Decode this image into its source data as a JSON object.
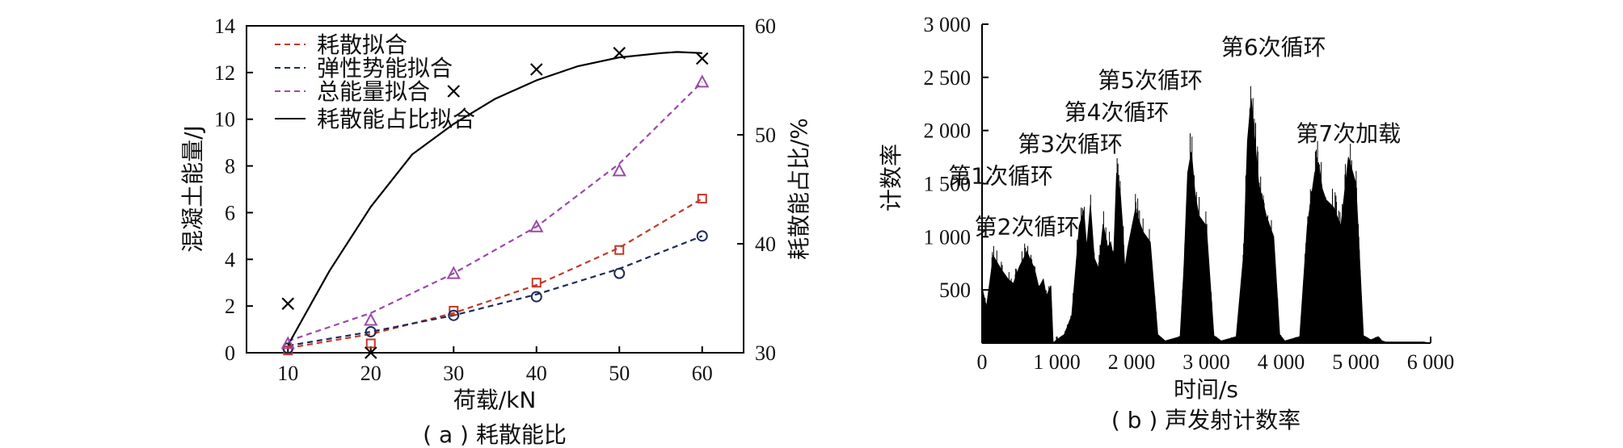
{
  "chart_data": [
    {
      "type": "scatter",
      "panel_caption": "( a ) 耗散能比",
      "xlabel": "荷载/kN",
      "ylabel": "混凝土能量/J",
      "ylabel_right": "耗散能占比/%",
      "xlim": [
        5,
        65
      ],
      "ylim": [
        0,
        14
      ],
      "ylim_right": [
        30,
        60
      ],
      "x_ticks": [
        10,
        20,
        30,
        40,
        50,
        60
      ],
      "y_ticks": [
        0,
        2,
        4,
        6,
        8,
        10,
        12,
        14
      ],
      "y_right_ticks": [
        30,
        40,
        50,
        60
      ],
      "legend_position": "top-left",
      "legend": [
        "耗散拟合",
        "弹性势能拟合",
        "总能量拟合",
        "耗散能占比拟合"
      ],
      "colors": {
        "dissipated": "#c0392b",
        "elastic": "#1f2a5a",
        "total": "#9b4aa8",
        "ratio": "#000000"
      },
      "x": [
        10,
        20,
        30,
        40,
        50,
        60
      ],
      "series": [
        {
          "key": "dissipated",
          "axis": "left",
          "marker": "square",
          "values": [
            0.1,
            0.4,
            1.8,
            3.0,
            4.4,
            6.6
          ]
        },
        {
          "key": "elastic",
          "axis": "left",
          "marker": "circle",
          "values": [
            0.2,
            0.9,
            1.6,
            2.4,
            3.4,
            5.0
          ]
        },
        {
          "key": "total",
          "axis": "left",
          "marker": "triangle",
          "values": [
            0.4,
            1.4,
            3.4,
            5.4,
            7.8,
            11.6
          ]
        },
        {
          "key": "ratio",
          "axis": "right",
          "marker": "cross",
          "values": [
            34.5,
            30.0,
            54.0,
            56.0,
            57.5,
            57.0
          ]
        }
      ],
      "fits": [
        {
          "key": "dissipated",
          "axis": "left",
          "style": "dashed",
          "x": [
            10,
            20,
            30,
            40,
            50,
            60
          ],
          "y": [
            0.2,
            0.8,
            1.7,
            2.9,
            4.5,
            6.6
          ]
        },
        {
          "key": "elastic",
          "axis": "left",
          "style": "dashed",
          "x": [
            10,
            20,
            30,
            40,
            50,
            60
          ],
          "y": [
            0.3,
            0.9,
            1.6,
            2.5,
            3.6,
            5.0
          ]
        },
        {
          "key": "total",
          "axis": "left",
          "style": "dashed",
          "x": [
            10,
            20,
            30,
            40,
            50,
            60
          ],
          "y": [
            0.5,
            1.7,
            3.4,
            5.4,
            8.1,
            11.6
          ]
        },
        {
          "key": "ratio",
          "axis": "right",
          "style": "solid",
          "x": [
            10,
            15,
            20,
            25,
            30,
            35,
            40,
            45,
            50,
            55,
            57,
            60
          ],
          "y": [
            30.7,
            37.5,
            43.4,
            48.2,
            51.0,
            53.3,
            55.0,
            56.3,
            57.1,
            57.5,
            57.6,
            57.5
          ]
        }
      ]
    },
    {
      "type": "area",
      "panel_caption": "( b ) 声发射计数率",
      "xlabel": "时间/s",
      "ylabel": "计数率",
      "xlim": [
        0,
        6000
      ],
      "ylim": [
        0,
        3000
      ],
      "x_ticks": [
        "0",
        "1 000",
        "2 000",
        "3 000",
        "4 000",
        "5 000",
        "6 000"
      ],
      "y_ticks": [
        "500",
        "1 000",
        "1 500",
        "2 000",
        "2 500",
        "3 000"
      ],
      "x_tick_values": [
        0,
        1000,
        2000,
        3000,
        4000,
        5000,
        6000
      ],
      "y_tick_values": [
        500,
        1000,
        1500,
        2000,
        2500,
        3000
      ],
      "color": "#000000",
      "annotations": [
        "第1次循环",
        "第2次循环",
        "第3次循环",
        "第4次循环",
        "第5次循环",
        "第6次循环",
        "第7次加载"
      ],
      "envelope": {
        "x": [
          0,
          60,
          150,
          250,
          350,
          420,
          500,
          600,
          700,
          760,
          820,
          860,
          920,
          950,
          980,
          1020,
          1100,
          1200,
          1300,
          1360,
          1400,
          1450,
          1500,
          1560,
          1620,
          1680,
          1720,
          1760,
          1800,
          1850,
          1880,
          1910,
          1950,
          2050,
          2150,
          2250,
          2350,
          2450,
          2550,
          2650,
          2700,
          2750,
          2800,
          2850,
          2900,
          3000,
          3100,
          3200,
          3300,
          3400,
          3500,
          3550,
          3600,
          3700,
          3800,
          3900,
          3980,
          4050,
          4150,
          4250,
          4350,
          4450,
          4500,
          4550,
          4600,
          4700,
          4800,
          4900,
          5000,
          5100,
          5200,
          5300,
          5350,
          5400,
          5500,
          5600,
          5700,
          5800,
          5900,
          6000
        ],
        "y": [
          520,
          340,
          820,
          700,
          600,
          560,
          720,
          860,
          700,
          520,
          600,
          440,
          540,
          0,
          20,
          40,
          80,
          260,
          1100,
          1250,
          900,
          1300,
          800,
          700,
          1120,
          900,
          950,
          800,
          1600,
          1400,
          1100,
          700,
          900,
          1250,
          1050,
          950,
          80,
          20,
          40,
          60,
          700,
          1600,
          1800,
          1400,
          1200,
          1100,
          70,
          20,
          40,
          60,
          850,
          1900,
          2300,
          1500,
          1200,
          1000,
          80,
          20,
          40,
          60,
          1100,
          1600,
          1700,
          1450,
          1350,
          1280,
          1100,
          1750,
          1500,
          70,
          30,
          60,
          20,
          10,
          10,
          10,
          10,
          10,
          10,
          0
        ]
      }
    }
  ]
}
